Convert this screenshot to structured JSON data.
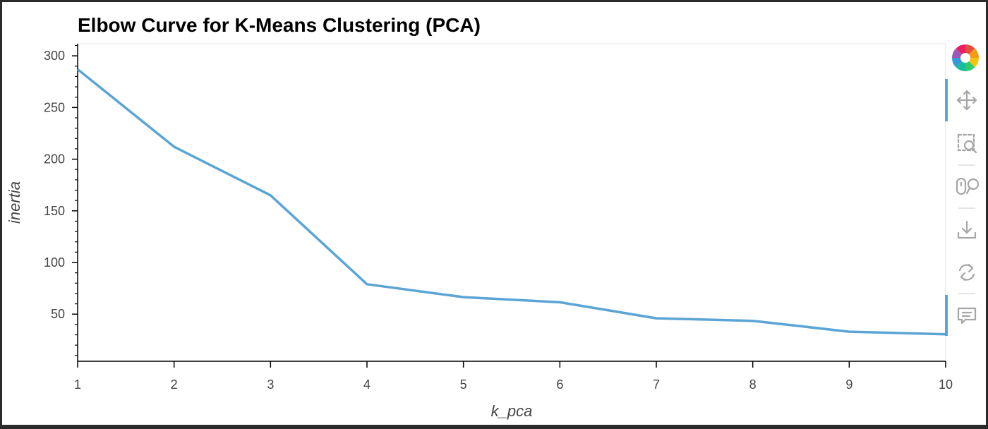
{
  "chart_data": {
    "type": "line",
    "title": "Elbow Curve for K-Means Clustering (PCA)",
    "xlabel": "k_pca",
    "ylabel": "inertia",
    "x": [
      1,
      2,
      3,
      4,
      5,
      6,
      7,
      8,
      9,
      10
    ],
    "series": [
      {
        "values": [
          287,
          212,
          165,
          79,
          66.5,
          61.5,
          46,
          43.5,
          33,
          30.5
        ]
      }
    ],
    "x_ticks": [
      "1",
      "2",
      "3",
      "4",
      "5",
      "6",
      "7",
      "8",
      "9",
      "10"
    ],
    "y_ticks": [
      "50",
      "100",
      "150",
      "200",
      "250",
      "300"
    ],
    "xlim": [
      1,
      10
    ],
    "ylim": [
      4.4,
      311.7
    ],
    "grid": false,
    "line_color": "#5aa5d5"
  },
  "toolbar": {
    "tools": [
      {
        "icon": "bokeh-logo-icon"
      },
      {
        "icon": "pan-icon"
      },
      {
        "icon": "box-zoom-icon"
      },
      {
        "icon": "wheel-zoom-icon"
      },
      {
        "icon": "save-icon"
      },
      {
        "icon": "reset-icon"
      },
      {
        "icon": "hover-icon"
      }
    ],
    "active_color": "#5aa5d5",
    "icon_color": "#a6a6a6"
  }
}
